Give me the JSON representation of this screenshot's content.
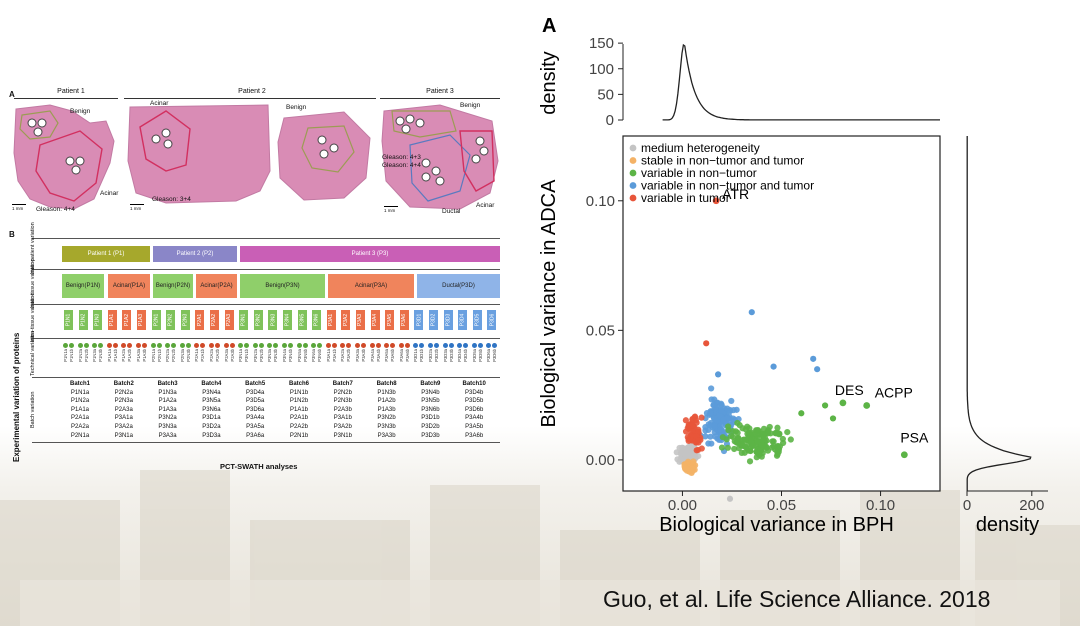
{
  "left_figure": {
    "panel_a": {
      "letter": "A",
      "patients": [
        "Patient 1",
        "Patient 2",
        "Patient 3"
      ],
      "labels_p1": [
        "Benign",
        "Acinar",
        "Gleason: 4+4"
      ],
      "labels_p2": [
        "Acinar",
        "Benign",
        "Gleason: 3+4"
      ],
      "labels_p3": [
        "Benign",
        "Gleason: 4+3",
        "Gleason: 4+4",
        "Acinar",
        "Ductal"
      ],
      "scale": "1 mm"
    },
    "panel_b": {
      "letter": "B",
      "axis_label": "Experimental variation of proteins",
      "row_labels": [
        "Inter-patient variation",
        "Inter-tissue variation",
        "Intra-tissue variation",
        "Technical variation",
        "Batch variation"
      ],
      "patients": [
        "Patient 1 (P1)",
        "Patient 2 (P2)",
        "Patient 3 (P3)"
      ],
      "tissues": [
        {
          "name": "Benign",
          "code": "(P1N)"
        },
        {
          "name": "Acinar",
          "code": "(P1A)"
        },
        {
          "name": "Benign",
          "code": "(P2N)"
        },
        {
          "name": "Acinar",
          "code": "(P2A)"
        },
        {
          "name": "Benign",
          "code": "(P3N)"
        },
        {
          "name": "Acinar",
          "code": "(P3A)"
        },
        {
          "name": "Ductal",
          "code": "(P3D)"
        }
      ],
      "samples": [
        "P1N1",
        "P1N2",
        "P1N3",
        "P1A1",
        "P1A2",
        "P1A3",
        "P2N1",
        "P2N2",
        "P2N3",
        "P2A1",
        "P2A2",
        "P2A3",
        "P3N1",
        "P3N2",
        "P3N3",
        "P3N4",
        "P3N5",
        "P3N6",
        "P3A1",
        "P3A2",
        "P3A3",
        "P3A4",
        "P3A5",
        "P3A6",
        "P3D1",
        "P3D2",
        "P3D3",
        "P3D4",
        "P3D5",
        "P3D6"
      ],
      "batches": [
        {
          "name": "Batch1",
          "items": [
            "P1N1a",
            "P1N2a",
            "P1A1a",
            "P2A1a",
            "P2A2a",
            "P2N1a"
          ]
        },
        {
          "name": "Batch2",
          "items": [
            "P2N2a",
            "P2N3a",
            "P2A3a",
            "P3A1a",
            "P3A2a",
            "P3N1a"
          ]
        },
        {
          "name": "Batch3",
          "items": [
            "P1N3a",
            "P1A2a",
            "P1A3a",
            "P3N2a",
            "P3N3a",
            "P3A3a"
          ]
        },
        {
          "name": "Batch4",
          "items": [
            "P3N4a",
            "P3N5a",
            "P3N6a",
            "P3D1a",
            "P3D2a",
            "P3D3a"
          ]
        },
        {
          "name": "Batch5",
          "items": [
            "P3D4a",
            "P3D5a",
            "P3D6a",
            "P3A4a",
            "P3A5a",
            "P3A6a"
          ]
        },
        {
          "name": "Batch6",
          "items": [
            "P1N1b",
            "P1N2b",
            "P1A1b",
            "P2A1b",
            "P2A2b",
            "P2N1b"
          ]
        },
        {
          "name": "Batch7",
          "items": [
            "P2N2b",
            "P2N3b",
            "P2A3b",
            "P3A1b",
            "P3A2b",
            "P3N1b"
          ]
        },
        {
          "name": "Batch8",
          "items": [
            "P1N3b",
            "P1A2b",
            "P1A3b",
            "P3N2b",
            "P3N3b",
            "P3A3b"
          ]
        },
        {
          "name": "Batch9",
          "items": [
            "P3N4b",
            "P3N5b",
            "P3N6b",
            "P3D1b",
            "P3D2b",
            "P3D3b"
          ]
        },
        {
          "name": "Batch10",
          "items": [
            "P3D4b",
            "P3D5b",
            "P3D6b",
            "P3A4b",
            "P3A5b",
            "P3A6b"
          ]
        }
      ],
      "footer": "PCT-SWATH analyses"
    }
  },
  "chart_data": {
    "type": "scatter",
    "panel_letter": "A",
    "xlabel": "Biological variance in BPH",
    "ylabel": "Biological variance in ADCA",
    "xlim": [
      -0.03,
      0.13
    ],
    "ylim": [
      -0.012,
      0.125
    ],
    "xticks": [
      0.0,
      0.05,
      0.1
    ],
    "xtick_labels": [
      "0.00",
      "0.05",
      "0.10"
    ],
    "yticks": [
      0.0,
      0.05,
      0.1
    ],
    "ytick_labels": [
      "0.00",
      "0.05",
      "0.10"
    ],
    "legend_position": "top-left",
    "series": [
      {
        "name": "medium heterogeneity",
        "color": "#c4c4c4"
      },
      {
        "name": "stable in non−tumor and tumor",
        "color": "#f4b266"
      },
      {
        "name": "variable in non−tumor",
        "color": "#5cb446"
      },
      {
        "name": "variable in non−tumor and tumor",
        "color": "#5b9bd9"
      },
      {
        "name": "variable in tumor",
        "color": "#e8553a"
      }
    ],
    "annotations": [
      {
        "label": "ATR",
        "x": 0.017,
        "y": 0.1,
        "series": 4
      },
      {
        "label": "DES",
        "x": 0.081,
        "y": 0.022,
        "series": 2
      },
      {
        "label": "ACPP",
        "x": 0.093,
        "y": 0.021,
        "series": 2
      },
      {
        "label": "PSA",
        "x": 0.112,
        "y": 0.002,
        "series": 2
      }
    ],
    "top_density": {
      "ylabel": "density",
      "yticks": [
        0,
        50,
        100,
        150
      ],
      "ytick_labels": [
        "0",
        "50",
        "100",
        "150"
      ],
      "ylim": [
        0,
        160
      ],
      "peak": {
        "x": 0.001,
        "y": 150
      }
    },
    "right_density": {
      "xlabel": "density",
      "xticks": [
        0,
        200
      ],
      "xtick_labels": [
        "0",
        "200"
      ],
      "xlim": [
        0,
        250
      ],
      "peak": {
        "y": 0.001,
        "x": 200
      }
    }
  },
  "citation": "Guo, et al. Life Science Alliance. 2018"
}
